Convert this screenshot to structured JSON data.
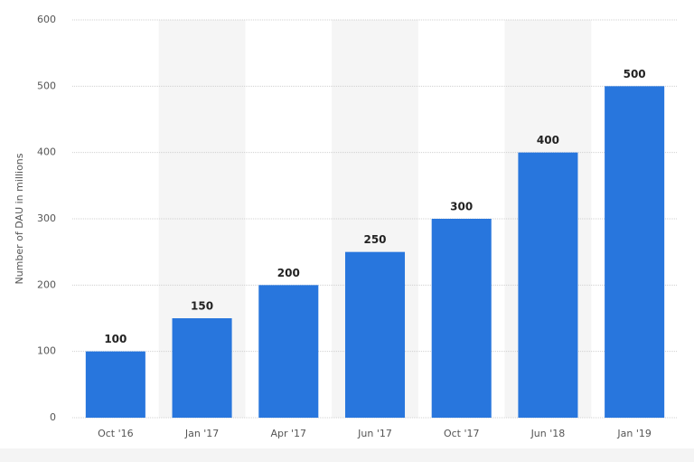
{
  "chart_data": {
    "type": "bar",
    "y_label": "Number of DAU in millions",
    "categories": [
      "Oct '16",
      "Jan '17",
      "Apr '17",
      "Jun '17",
      "Oct '17",
      "Jun '18",
      "Jan '19"
    ],
    "values": [
      100,
      150,
      200,
      250,
      300,
      400,
      500
    ],
    "color": "#2876dd",
    "ylim": [
      0,
      600
    ],
    "yticks": [
      0,
      100,
      200,
      300,
      400,
      500,
      600
    ],
    "grid": true
  }
}
